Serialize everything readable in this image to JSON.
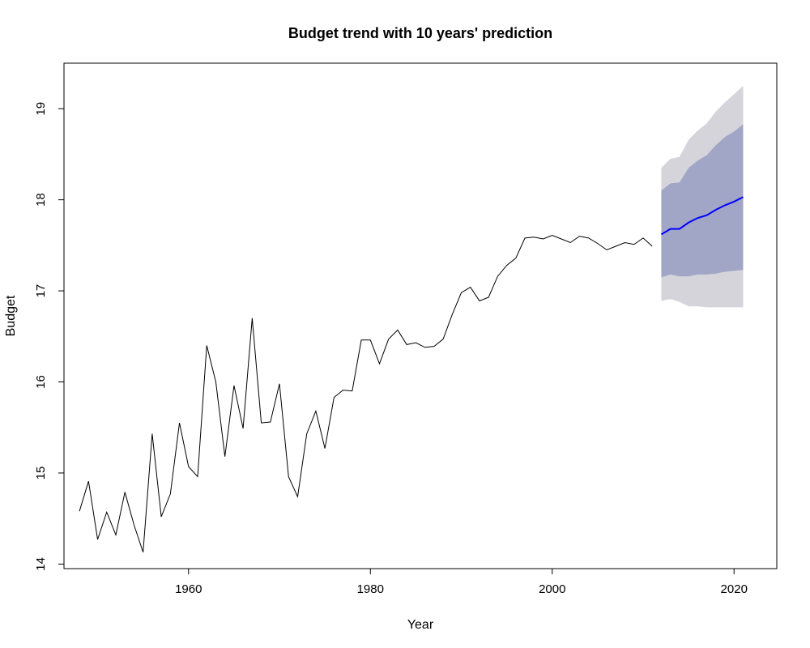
{
  "chart_data": {
    "type": "line",
    "title": "Budget trend with 10 years' prediction",
    "xlabel": "Year",
    "ylabel": "Budget",
    "xlim": [
      1946.3,
      2024.7
    ],
    "ylim": [
      13.95,
      19.5
    ],
    "grid": false,
    "x_ticks": [
      1960,
      1980,
      2000,
      2020
    ],
    "y_ticks": [
      14,
      15,
      16,
      17,
      18,
      19
    ],
    "colors": {
      "history": "#000000",
      "forecast": "#0000ff",
      "band80": "#a2a6c6",
      "band95": "#d4d4da"
    },
    "series": [
      {
        "kind": "history",
        "x": [
          1948,
          1949,
          1950,
          1951,
          1952,
          1953,
          1954,
          1955,
          1956,
          1957,
          1958,
          1959,
          1960,
          1961,
          1962,
          1963,
          1964,
          1965,
          1966,
          1967,
          1968,
          1969,
          1970,
          1971,
          1972,
          1973,
          1974,
          1975,
          1976,
          1977,
          1978,
          1979,
          1980,
          1981,
          1982,
          1983,
          1984,
          1985,
          1986,
          1987,
          1988,
          1989,
          1990,
          1991,
          1992,
          1993,
          1994,
          1995,
          1996,
          1997,
          1998,
          1999,
          2000,
          2001,
          2002,
          2003,
          2004,
          2005,
          2006,
          2007,
          2008,
          2009,
          2010,
          2011
        ],
        "values": [
          14.58,
          14.91,
          14.27,
          14.57,
          14.32,
          14.79,
          14.43,
          14.13,
          15.43,
          14.52,
          14.77,
          15.55,
          15.07,
          14.96,
          16.4,
          16.0,
          15.18,
          15.96,
          15.49,
          16.7,
          15.55,
          15.56,
          15.98,
          14.96,
          14.74,
          15.43,
          15.68,
          15.27,
          15.83,
          15.91,
          15.9,
          16.46,
          16.46,
          16.2,
          16.47,
          16.57,
          16.41,
          16.43,
          16.38,
          16.39,
          16.47,
          16.74,
          16.98,
          17.04,
          16.89,
          16.93,
          17.16,
          17.28,
          17.36,
          17.58,
          17.59,
          17.57,
          17.61,
          17.57,
          17.53,
          17.6,
          17.58,
          17.52,
          17.45,
          17.49,
          17.53,
          17.51,
          17.58,
          17.49
        ]
      },
      {
        "kind": "forecast",
        "x": [
          2012,
          2013,
          2014,
          2015,
          2016,
          2017,
          2018,
          2019,
          2020,
          2021
        ],
        "values": [
          17.62,
          17.68,
          17.68,
          17.75,
          17.8,
          17.83,
          17.89,
          17.94,
          17.98,
          18.03
        ],
        "lo80": [
          17.15,
          17.18,
          17.16,
          17.16,
          17.18,
          17.18,
          17.19,
          17.21,
          17.22,
          17.23
        ],
        "hi80": [
          18.1,
          18.18,
          18.19,
          18.35,
          18.43,
          18.49,
          18.6,
          18.69,
          18.75,
          18.83
        ],
        "lo95": [
          16.89,
          16.91,
          16.88,
          16.83,
          16.83,
          16.82,
          16.82,
          16.82,
          16.82,
          16.82
        ],
        "hi95": [
          18.35,
          18.45,
          18.47,
          18.66,
          18.76,
          18.84,
          18.97,
          19.07,
          19.16,
          19.25
        ]
      }
    ]
  }
}
